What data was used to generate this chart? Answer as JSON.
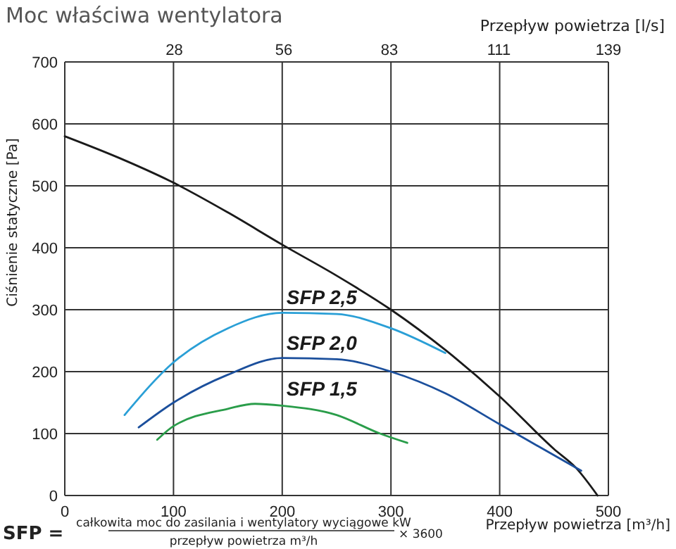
{
  "chart_data": {
    "type": "line",
    "title": "Moc właściwa wentylatora",
    "xlabel": "Przepływ powietrza [m³/h]",
    "x2label": "Przepływ powietrza [l/s]",
    "ylabel": "Ciśnienie statyczne [Pa]",
    "xlim": [
      0,
      500
    ],
    "xticks": [
      0,
      100,
      200,
      300,
      400,
      500
    ],
    "x2lim": [
      0,
      139
    ],
    "x2ticks": [
      28,
      56,
      83,
      111,
      139
    ],
    "ylim": [
      0,
      700
    ],
    "yticks": [
      0,
      100,
      200,
      300,
      400,
      500,
      600,
      700
    ],
    "grid": true,
    "marker": "none",
    "line_style": "solid",
    "series": [
      {
        "color": "#1a1a1a",
        "x": [
          0,
          50,
          100,
          150,
          200,
          250,
          300,
          350,
          400,
          450,
          470,
          490
        ],
        "values": [
          580,
          545,
          505,
          457,
          405,
          355,
          300,
          235,
          160,
          75,
          45,
          0
        ]
      },
      {
        "name": "SFP 2,5",
        "color": "#2a9fd6",
        "x": [
          55,
          100,
          150,
          200,
          250,
          300,
          350
        ],
        "values": [
          130,
          215,
          270,
          295,
          293,
          270,
          230
        ]
      },
      {
        "name": "SFP 2,0",
        "color": "#1b4f9c",
        "x": [
          68,
          100,
          150,
          200,
          250,
          300,
          350,
          400,
          450,
          475
        ],
        "values": [
          110,
          150,
          195,
          222,
          220,
          200,
          165,
          115,
          65,
          40
        ]
      },
      {
        "name": "SFP 1,5",
        "color": "#2a9d4a",
        "x": [
          85,
          100,
          150,
          175,
          200,
          250,
          290,
          315
        ],
        "values": [
          90,
          112,
          140,
          148,
          145,
          130,
          100,
          85
        ]
      }
    ],
    "annotations": [
      "SFP =",
      "całkowita moc do zasilania i wentylatory wyciągowe kW",
      "przepływ powietrza m³/h",
      "× 3600"
    ]
  }
}
